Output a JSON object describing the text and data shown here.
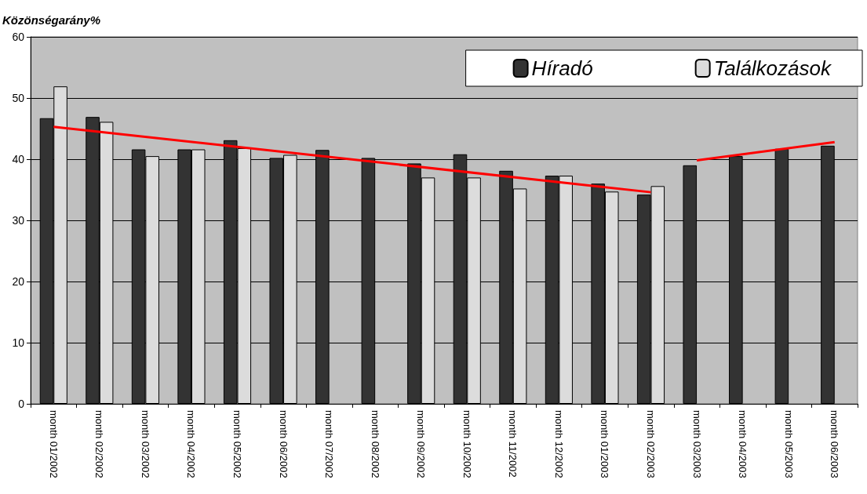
{
  "chart_data": {
    "type": "bar",
    "ylabel": "Közönségarány%",
    "categories": [
      "month 01/2002",
      "month 02/2002",
      "month 03/2002",
      "month 04/2002",
      "month 05/2002",
      "month 06/2002",
      "month 07/2002",
      "month 08/2002",
      "month 09/2002",
      "month 10/2002",
      "month 11/2002",
      "month 12/2002",
      "month 01/2003",
      "month 02/2003",
      "month 03/2003",
      "month 04/2003",
      "month 05/2003",
      "month 06/2003"
    ],
    "series": [
      {
        "name": "Híradó",
        "color": "#333333",
        "values": [
          46.7,
          46.9,
          41.6,
          41.6,
          43.1,
          40.2,
          41.5,
          40.2,
          39.3,
          40.8,
          38.1,
          37.3,
          36.0,
          34.2,
          39.0,
          40.5,
          41.7,
          42.2
        ]
      },
      {
        "name": "Találkozások",
        "color": "#dcdcdc",
        "values": [
          51.9,
          46.1,
          40.5,
          41.6,
          41.8,
          40.7,
          null,
          null,
          37.0,
          37.0,
          35.2,
          37.3,
          34.7,
          35.6,
          null,
          null,
          null,
          null
        ]
      },
      {
        "type": "line",
        "color": "#ff0000",
        "x": [
          "month 01/2002",
          "month 02/2003"
        ],
        "values": [
          45.3,
          34.6
        ]
      },
      {
        "type": "line",
        "color": "#ff0000",
        "x": [
          "month 03/2003",
          "month 06/2003"
        ],
        "values": [
          39.8,
          42.8
        ]
      }
    ],
    "ylim": [
      0,
      60
    ],
    "yticks": [
      0,
      10,
      20,
      30,
      40,
      50,
      60
    ],
    "grid": "y",
    "legend": "top right"
  }
}
